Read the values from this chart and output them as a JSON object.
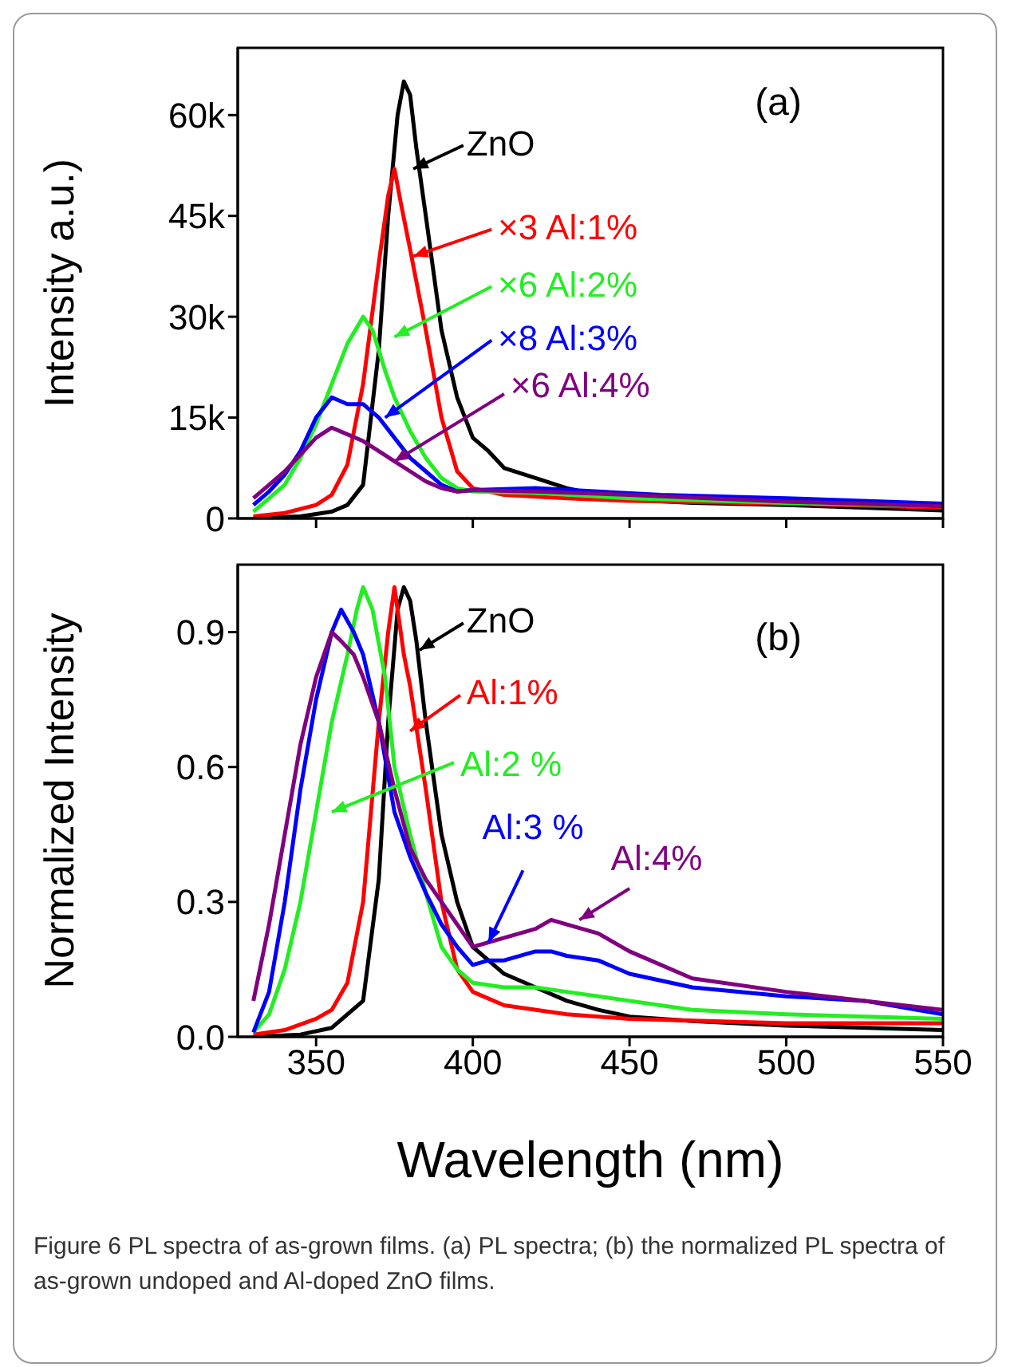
{
  "chart_data": [
    {
      "type": "line",
      "ylabel": "Intensity a.u.)",
      "xlim": [
        325,
        550
      ],
      "xticks": [
        350,
        400,
        450,
        500,
        550
      ],
      "ylim": [
        0,
        70000
      ],
      "yticks": [
        0,
        {
          "value": 15000,
          "label": "15k"
        },
        {
          "value": 30000,
          "label": "30k"
        },
        {
          "value": 45000,
          "label": "45k"
        },
        {
          "value": 60000,
          "label": "60k"
        }
      ],
      "tick_labels": "y",
      "legend": "top left",
      "annotations": [
        "(a)"
      ],
      "series": [
        {
          "name": "ZnO",
          "color": "#000000",
          "x": [
            330,
            345,
            355,
            360,
            365,
            370,
            373,
            376,
            378,
            380,
            382,
            385,
            390,
            395,
            400,
            405,
            410,
            420,
            430,
            440,
            450,
            470,
            500,
            550
          ],
          "values": [
            100,
            300,
            1000,
            2000,
            5000,
            25000,
            45000,
            60000,
            65000,
            63000,
            55000,
            45000,
            28000,
            18000,
            12000,
            10000,
            7500,
            6000,
            4500,
            3500,
            2800,
            2300,
            2000,
            1200
          ]
        },
        {
          "name": "×3   Al:1%",
          "color": "#ff0000",
          "x": [
            330,
            340,
            350,
            355,
            360,
            365,
            370,
            373,
            375,
            377,
            380,
            385,
            390,
            395,
            400,
            410,
            430,
            450,
            500,
            550
          ],
          "values": [
            300,
            800,
            2000,
            3500,
            8000,
            20000,
            38000,
            48000,
            52000,
            47000,
            40000,
            28000,
            15000,
            7000,
            4500,
            3500,
            3000,
            2600,
            2200,
            1600
          ]
        },
        {
          "name": "×6  Al:2%",
          "color": "#22ee22",
          "x": [
            330,
            340,
            345,
            350,
            355,
            360,
            365,
            368,
            372,
            375,
            380,
            385,
            390,
            395,
            400,
            420,
            450,
            500,
            550
          ],
          "values": [
            1000,
            5000,
            9000,
            14000,
            20000,
            26000,
            30000,
            28000,
            22000,
            18000,
            13000,
            9000,
            6000,
            4500,
            4000,
            3800,
            3000,
            2300,
            1800
          ]
        },
        {
          "name": "×8   Al:3%",
          "color": "#0000ff",
          "x": [
            330,
            335,
            340,
            345,
            350,
            355,
            360,
            365,
            370,
            375,
            380,
            385,
            390,
            395,
            400,
            420,
            440,
            460,
            500,
            550
          ],
          "values": [
            2000,
            4000,
            6500,
            10000,
            15000,
            18000,
            17000,
            17000,
            15000,
            12000,
            9000,
            7000,
            5000,
            4000,
            4200,
            4500,
            4000,
            3500,
            3000,
            2200
          ]
        },
        {
          "name": "×6  Al:4%",
          "color": "#800080",
          "x": [
            330,
            335,
            340,
            345,
            350,
            355,
            360,
            365,
            370,
            375,
            380,
            385,
            390,
            395,
            400,
            420,
            450,
            500,
            550
          ],
          "values": [
            3000,
            5000,
            7000,
            9500,
            12000,
            13500,
            12500,
            11500,
            10000,
            8500,
            7000,
            5500,
            4500,
            4000,
            4200,
            4000,
            3500,
            2500,
            1800
          ]
        }
      ]
    },
    {
      "type": "line",
      "xlabel": "Wavelength (nm)",
      "ylabel": "Normalized Intensity",
      "xlim": [
        325,
        550
      ],
      "xticks": [
        350,
        400,
        450,
        500,
        550
      ],
      "ylim": [
        0,
        1.05
      ],
      "yticks": [
        {
          "value": 0,
          "label": "0.0"
        },
        0.3,
        0.6,
        0.9
      ],
      "legend": "top left",
      "annotations": [
        "(b)",
        "Figure 6 PL spectra of as-grown films. (a) PL spectra; (b) the normalized PL spectra of as-grown undoped and Al-doped ZnO films."
      ],
      "series": [
        {
          "name": "ZnO",
          "color": "#000000",
          "x": [
            330,
            345,
            355,
            365,
            370,
            373,
            376,
            378,
            380,
            382,
            385,
            390,
            395,
            400,
            410,
            420,
            430,
            440,
            450,
            470,
            500,
            550
          ],
          "values": [
            0,
            0.005,
            0.02,
            0.08,
            0.35,
            0.7,
            0.95,
            1.0,
            0.97,
            0.88,
            0.7,
            0.45,
            0.3,
            0.2,
            0.14,
            0.11,
            0.08,
            0.06,
            0.045,
            0.035,
            0.025,
            0.015
          ]
        },
        {
          "name": "Al:1%",
          "color": "#ff0000",
          "x": [
            330,
            340,
            350,
            355,
            360,
            365,
            370,
            373,
            375,
            378,
            380,
            385,
            390,
            395,
            400,
            410,
            430,
            450,
            500,
            550
          ],
          "values": [
            0.005,
            0.015,
            0.04,
            0.06,
            0.12,
            0.3,
            0.7,
            0.9,
            1.0,
            0.85,
            0.78,
            0.55,
            0.3,
            0.15,
            0.1,
            0.07,
            0.05,
            0.04,
            0.03,
            0.03
          ]
        },
        {
          "name": "Al:2 %",
          "color": "#22ee22",
          "x": [
            330,
            335,
            340,
            345,
            350,
            355,
            360,
            363,
            365,
            368,
            372,
            375,
            380,
            385,
            390,
            395,
            400,
            410,
            420,
            430,
            450,
            470,
            500,
            550
          ],
          "values": [
            0.01,
            0.05,
            0.15,
            0.3,
            0.5,
            0.7,
            0.85,
            0.95,
            1.0,
            0.95,
            0.8,
            0.6,
            0.45,
            0.32,
            0.2,
            0.15,
            0.12,
            0.11,
            0.11,
            0.1,
            0.08,
            0.06,
            0.05,
            0.04
          ]
        },
        {
          "name": "Al:3 %",
          "color": "#0000ff",
          "x": [
            330,
            335,
            340,
            345,
            350,
            355,
            358,
            362,
            365,
            370,
            375,
            380,
            385,
            390,
            395,
            400,
            405,
            410,
            420,
            425,
            430,
            440,
            450,
            470,
            500,
            525,
            550
          ],
          "values": [
            0.01,
            0.1,
            0.3,
            0.55,
            0.75,
            0.9,
            0.95,
            0.9,
            0.85,
            0.7,
            0.5,
            0.4,
            0.32,
            0.25,
            0.2,
            0.16,
            0.17,
            0.17,
            0.19,
            0.19,
            0.18,
            0.17,
            0.14,
            0.11,
            0.09,
            0.08,
            0.05
          ]
        },
        {
          "name": "Al:4%",
          "color": "#800080",
          "x": [
            330,
            335,
            340,
            345,
            350,
            355,
            358,
            362,
            365,
            370,
            375,
            380,
            385,
            390,
            395,
            400,
            410,
            420,
            425,
            430,
            440,
            450,
            470,
            500,
            525,
            550
          ],
          "values": [
            0.08,
            0.25,
            0.45,
            0.65,
            0.8,
            0.9,
            0.88,
            0.85,
            0.8,
            0.7,
            0.55,
            0.42,
            0.35,
            0.3,
            0.25,
            0.2,
            0.22,
            0.24,
            0.26,
            0.25,
            0.23,
            0.19,
            0.13,
            0.1,
            0.08,
            0.06
          ]
        }
      ]
    }
  ]
}
